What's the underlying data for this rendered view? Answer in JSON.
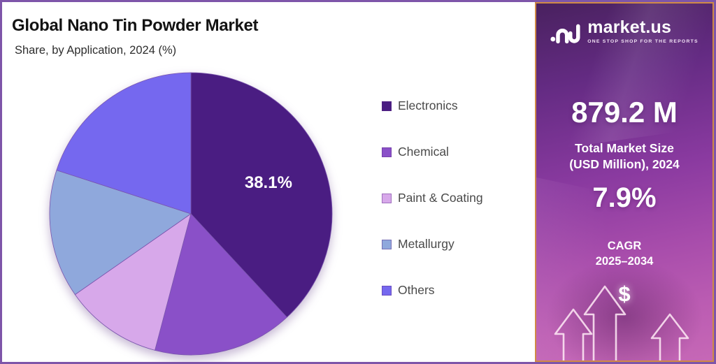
{
  "chart_data": {
    "type": "pie",
    "title": "Global Nano Tin Powder Market",
    "subtitle": "Share, by Application, 2024 (%)",
    "legend_position": "right",
    "start_angle_deg": 0,
    "direction": "clockwise",
    "series": [
      {
        "name": "Electronics",
        "value": 38.1,
        "color": "#4a1d82",
        "label": "38.1%"
      },
      {
        "name": "Chemical",
        "value": 16.0,
        "color": "#8a50c8",
        "label": ""
      },
      {
        "name": "Paint & Coating",
        "value": 11.2,
        "color": "#d7a8ea",
        "label": ""
      },
      {
        "name": "Metallurgy",
        "value": 14.7,
        "color": "#8fa8dc",
        "label": ""
      },
      {
        "name": "Others",
        "value": 20.0,
        "color": "#7568ef",
        "label": ""
      }
    ]
  },
  "sidebar": {
    "logo_text": "market.us",
    "logo_tagline": "ONE STOP SHOP FOR THE REPORTS",
    "market_size_value": "879.2 M",
    "market_size_label_line1": "Total Market Size",
    "market_size_label_line2": "(USD Million), 2024",
    "cagr_value": "7.9%",
    "cagr_label_line1": "CAGR",
    "cagr_label_line2": "2025–2034",
    "dollar_symbol": "$"
  },
  "colors": {
    "outer_border": "#7e55a9",
    "sidebar_border": "#d08a46",
    "slice_stroke": "#7a55ad",
    "label_text": "#ffffff"
  }
}
